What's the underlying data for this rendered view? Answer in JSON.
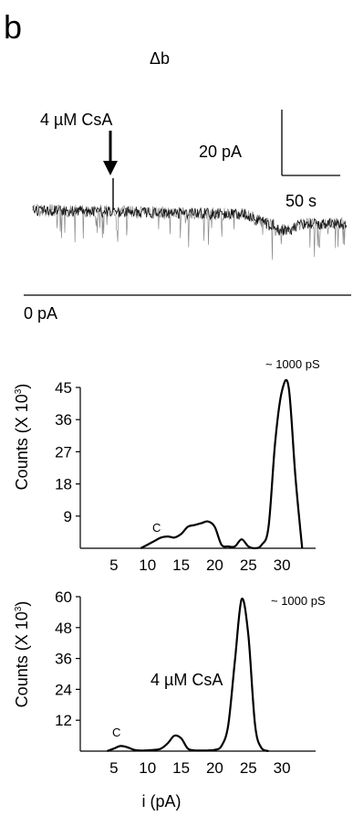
{
  "panel_label": "b",
  "title": "Δb",
  "trace": {
    "arrow_label": "4 µM CsA",
    "scale_current": "20 pA",
    "scale_time": "50 s",
    "zero_label": "0 pA"
  },
  "chart_data": [
    {
      "type": "line",
      "title": "",
      "annotation": "~ 1000 pS",
      "peak_label": "C",
      "xlabel": "",
      "ylabel_main": "Counts (X 10",
      "ylabel_exp": "3",
      "ylabel_close": ")",
      "xlim": [
        0,
        35
      ],
      "ylim": [
        0,
        45
      ],
      "xticks": [
        "5",
        "10",
        "15",
        "20",
        "25",
        "30"
      ],
      "yticks": [
        "9",
        "18",
        "27",
        "36",
        "45"
      ],
      "x": [
        9,
        10,
        11,
        12,
        13,
        14,
        15,
        16,
        17,
        18,
        19,
        20,
        21,
        22,
        23,
        24,
        25,
        26,
        27,
        28,
        29,
        30,
        31,
        32,
        33
      ],
      "y": [
        0,
        1,
        2,
        3,
        3.3,
        3,
        4,
        6,
        6.5,
        7,
        7.5,
        6,
        1,
        0.5,
        0.5,
        2.5,
        0.5,
        0,
        1,
        6,
        30,
        44,
        45,
        20,
        0
      ]
    },
    {
      "type": "line",
      "title": "",
      "annotation": "~ 1000 pS",
      "peak_label": "C",
      "inset_label": "4 µM CsA",
      "xlabel": "i (pA)",
      "ylabel_main": "Counts (X 10",
      "ylabel_exp": "3",
      "ylabel_close": ")",
      "xlim": [
        0,
        35
      ],
      "ylim": [
        0,
        60
      ],
      "xticks": [
        "5",
        "10",
        "15",
        "20",
        "25",
        "30"
      ],
      "yticks": [
        "12",
        "24",
        "36",
        "48",
        "60"
      ],
      "x": [
        4,
        5,
        6,
        7,
        8,
        9,
        10,
        11,
        12,
        13,
        14,
        15,
        16,
        17,
        18,
        19,
        20,
        21,
        22,
        23,
        24,
        25,
        26,
        27,
        28
      ],
      "y": [
        0,
        1,
        2,
        1.5,
        0.5,
        0.2,
        0.3,
        0.5,
        1,
        3,
        6,
        5,
        1,
        0.3,
        0.2,
        0.3,
        0.5,
        2,
        10,
        35,
        59,
        45,
        10,
        1,
        0
      ]
    }
  ]
}
